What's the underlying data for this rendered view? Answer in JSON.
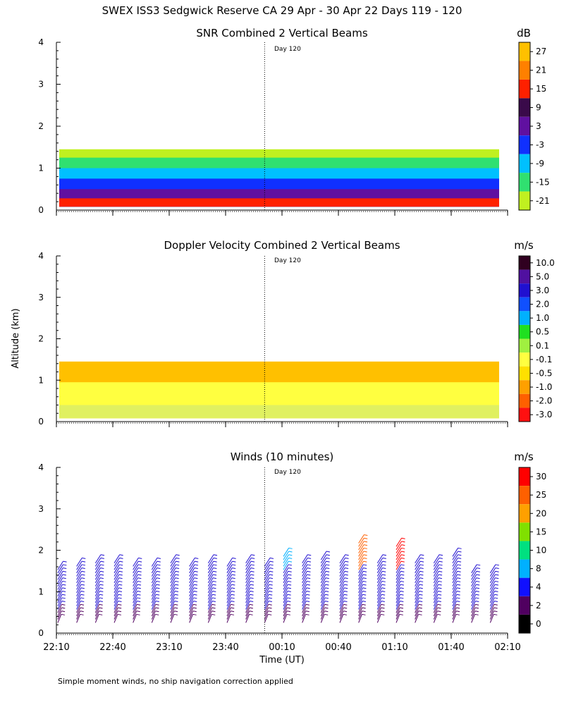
{
  "page_title": "SWEX ISS3 Sedgwick Reserve CA  29 Apr - 30 Apr 22 Days 119 - 120",
  "footer_note": "Simple moment winds, no ship navigation correction applied",
  "shared_ylabel": "Altitude (km)",
  "shared_xlabel": "Time (UT)",
  "day_marker_label": "Day 120",
  "chart_data": [
    {
      "type": "heatmap",
      "title": "SNR Combined 2 Vertical Beams",
      "unit": "dB",
      "x_tick_labels": [
        "22:10",
        "22:40",
        "23:10",
        "23:40",
        "00:10",
        "00:40",
        "01:10",
        "01:40",
        "02:10"
      ],
      "y_tick_labels": [
        "0",
        "1",
        "2",
        "3",
        "4"
      ],
      "ylim": [
        0,
        4
      ],
      "xlabel": "",
      "ylabel": "Altitude (km)",
      "day_marker_time": "00:00",
      "colorbar": {
        "labels": [
          "27",
          "21",
          "15",
          "9",
          "3",
          "-3",
          "-9",
          "-15",
          "-21"
        ],
        "colors": [
          "#FFC000",
          "#FF8000",
          "#FF2000",
          "#3A0A4A",
          "#6010A0",
          "#1030FF",
          "#00C0FF",
          "#30E070",
          "#C0F020"
        ]
      },
      "layers": [
        {
          "label": "-21",
          "alt_top_km": 1.45,
          "color": "#C0F020"
        },
        {
          "label": "-15",
          "alt_top_km": 1.25,
          "color": "#30E070"
        },
        {
          "label": "-9",
          "alt_top_km": 1.0,
          "color": "#00C0FF"
        },
        {
          "label": "-3",
          "alt_top_km": 0.75,
          "color": "#1030FF"
        },
        {
          "label": "3",
          "alt_top_km": 0.5,
          "color": "#6010A0"
        },
        {
          "label": "15",
          "alt_top_km": 0.28,
          "color": "#FF2000"
        }
      ]
    },
    {
      "type": "heatmap",
      "title": "Doppler Velocity Combined 2 Vertical Beams",
      "unit": "m/s",
      "x_tick_labels": [
        "22:10",
        "22:40",
        "23:10",
        "23:40",
        "00:10",
        "00:40",
        "01:10",
        "01:40",
        "02:10"
      ],
      "y_tick_labels": [
        "0",
        "1",
        "2",
        "3",
        "4"
      ],
      "ylim": [
        0,
        4
      ],
      "xlabel": "",
      "ylabel": "Altitude (km)",
      "day_marker_time": "00:00",
      "colorbar": {
        "labels": [
          "10.0",
          "5.0",
          "3.0",
          "2.0",
          "1.0",
          "0.5",
          "0.1",
          "-0.1",
          "-0.5",
          "-1.0",
          "-2.0",
          "-3.0"
        ],
        "colors": [
          "#300020",
          "#5010A0",
          "#2010D0",
          "#1050FF",
          "#00B0FF",
          "#20E020",
          "#A0F040",
          "#FFFF40",
          "#FFE000",
          "#FFA000",
          "#FF6000",
          "#FF1010"
        ]
      },
      "layers": [
        {
          "label": "-0.5",
          "alt_top_km": 1.45,
          "color": "#FFC000"
        },
        {
          "label": "-0.1",
          "alt_top_km": 0.95,
          "color": "#FFFF40"
        },
        {
          "label": "0.1",
          "alt_top_km": 0.4,
          "color": "#E0F060"
        }
      ]
    },
    {
      "type": "scatter",
      "subtype": "wind-barbs",
      "title": "Winds (10 minutes)",
      "unit": "m/s",
      "x_tick_labels": [
        "22:10",
        "22:40",
        "23:10",
        "23:40",
        "00:10",
        "00:40",
        "01:10",
        "01:40",
        "02:10"
      ],
      "y_tick_labels": [
        "0",
        "1",
        "2",
        "3",
        "4"
      ],
      "ylim": [
        0,
        4
      ],
      "xlabel": "Time (UT)",
      "ylabel": "Altitude (km)",
      "day_marker_time": "00:00",
      "colorbar": {
        "labels": [
          "30",
          "25",
          "20",
          "15",
          "10",
          "8",
          "4",
          "2",
          "0"
        ],
        "colors": [
          "#FF0000",
          "#FF6000",
          "#FFA000",
          "#80E000",
          "#00E080",
          "#00B0FF",
          "#1010FF",
          "#500060",
          "#000000"
        ]
      },
      "profiles": [
        {
          "t": "22:10",
          "top_km": 1.6,
          "color": "#2010D0"
        },
        {
          "t": "22:20",
          "top_km": 1.65,
          "color": "#2010D0"
        },
        {
          "t": "22:30",
          "top_km": 1.7,
          "color": "#2010D0"
        },
        {
          "t": "22:40",
          "top_km": 1.7,
          "color": "#2010D0"
        },
        {
          "t": "22:50",
          "top_km": 1.65,
          "color": "#2010D0"
        },
        {
          "t": "23:00",
          "top_km": 1.65,
          "color": "#2010D0"
        },
        {
          "t": "23:10",
          "top_km": 1.7,
          "color": "#2010D0"
        },
        {
          "t": "23:20",
          "top_km": 1.65,
          "color": "#2010D0"
        },
        {
          "t": "23:30",
          "top_km": 1.7,
          "color": "#2010D0"
        },
        {
          "t": "23:40",
          "top_km": 1.65,
          "color": "#2010D0"
        },
        {
          "t": "23:50",
          "top_km": 1.7,
          "color": "#2010D0"
        },
        {
          "t": "00:00",
          "top_km": 1.65,
          "color": "#2010D0"
        },
        {
          "t": "00:10",
          "top_km": 1.9,
          "color": "#00B0FF"
        },
        {
          "t": "00:20",
          "top_km": 1.75,
          "color": "#2010D0"
        },
        {
          "t": "00:30",
          "top_km": 1.8,
          "color": "#2010D0"
        },
        {
          "t": "00:40",
          "top_km": 1.7,
          "color": "#2010D0"
        },
        {
          "t": "00:50",
          "top_km": 2.2,
          "color": "#FF6000"
        },
        {
          "t": "01:00",
          "top_km": 1.75,
          "color": "#2010D0"
        },
        {
          "t": "01:10",
          "top_km": 2.15,
          "color": "#FF0000"
        },
        {
          "t": "01:20",
          "top_km": 1.7,
          "color": "#2010D0"
        },
        {
          "t": "01:30",
          "top_km": 1.7,
          "color": "#2010D0"
        },
        {
          "t": "01:40",
          "top_km": 1.9,
          "color": "#2010D0"
        },
        {
          "t": "01:50",
          "top_km": 1.5,
          "color": "#2010D0"
        },
        {
          "t": "02:00",
          "top_km": 1.5,
          "color": "#2010D0"
        }
      ]
    }
  ]
}
